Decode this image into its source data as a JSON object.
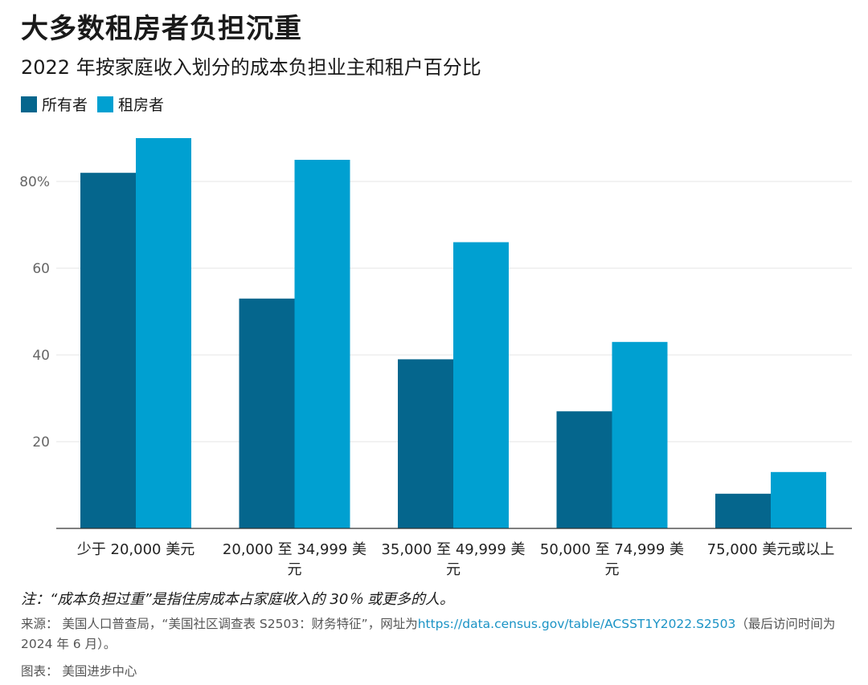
{
  "title": "大多数租房者负担沉重",
  "subtitle": "2022 年按家庭收入划分的成本负担业主和租户百分比",
  "chart_data": {
    "type": "bar",
    "title": "大多数租房者负担沉重",
    "subtitle": "2022 年按家庭收入划分的成本负担业主和租户百分比",
    "categories": [
      "少于 20,000 美元",
      "20,000 至 34,999 美元",
      "35,000 至 49,999 美元",
      "50,000 至 74,999 美元",
      "75,000 美元或以上"
    ],
    "category_lines": [
      [
        "少于 20,000 美元"
      ],
      [
        "20,000 至 34,999 美",
        "元"
      ],
      [
        "35,000 至 49,999 美",
        "元"
      ],
      [
        "50,000 至 74,999 美",
        "元"
      ],
      [
        "75,000 美元或以上"
      ]
    ],
    "series": [
      {
        "name": "所有者",
        "color": "#05668d",
        "values": [
          82,
          53,
          39,
          27,
          8
        ]
      },
      {
        "name": "租房者",
        "color": "#00a0d1",
        "values": [
          90,
          85,
          66,
          43,
          13
        ]
      }
    ],
    "yticks": [
      20,
      40,
      60,
      80
    ],
    "ytick_labels": [
      "20",
      "40",
      "60",
      "80%"
    ],
    "ylim": [
      0,
      92
    ],
    "xlabel": "",
    "ylabel": "",
    "grid": true,
    "legend_position": "top-left"
  },
  "legend": [
    {
      "label": "所有者",
      "color": "#05668d"
    },
    {
      "label": "租房者",
      "color": "#00a0d1"
    }
  ],
  "note": "注：“成本负担过重”是指住房成本占家庭收入的 30％ 或更多的人。",
  "source": {
    "prefix": "来源：  美国人口普查局，“美国社区调查表 S2503：财务特征”，网址为",
    "link": "https://data.census.gov/table/ACSST1Y2022.S2503",
    "suffix": "（最后访问时间为 2024 年 6 月）。"
  },
  "credit": "图表：  美国进步中心"
}
